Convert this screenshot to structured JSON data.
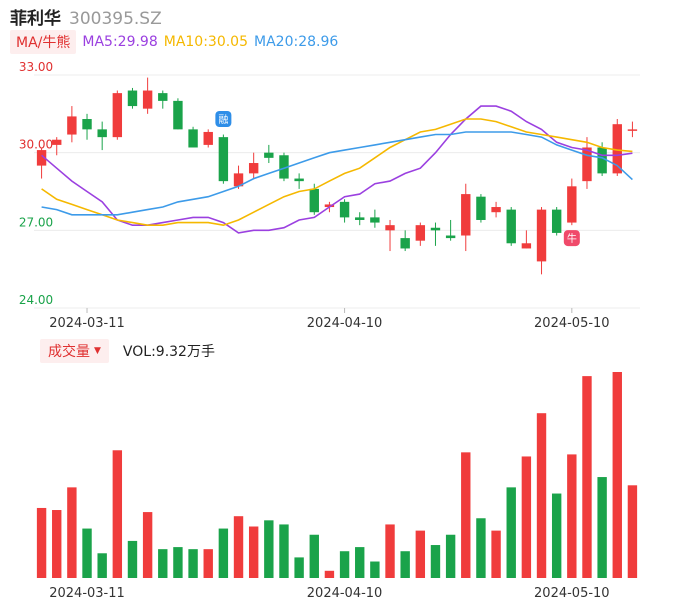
{
  "header": {
    "name": "菲利华",
    "code": "300395.SZ"
  },
  "ma_bar": {
    "button": "MA/牛熊",
    "ma5": "MA5:29.98",
    "ma10": "MA10:30.05",
    "ma20": "MA20:28.96",
    "colors": {
      "ma5": "#9b40e0",
      "ma10": "#f5b800",
      "ma20": "#3d9be9"
    }
  },
  "volume_bar": {
    "button": "成交量",
    "caret": "▼",
    "value": "VOL:9.32万手"
  },
  "markers": [
    {
      "label": "融",
      "index": 12,
      "price": 31.3,
      "color": "#2e8ee8"
    },
    {
      "label": "牛",
      "index": 35,
      "price": 26.7,
      "color": "#f04a6a"
    }
  ],
  "chart_data": [
    {
      "type": "candlestick",
      "ylim": [
        24.0,
        33.0
      ],
      "yticks": [
        "33.00",
        "30.00",
        "27.00",
        "24.00"
      ],
      "xticks": [
        {
          "index": 3,
          "label": "2024-03-11"
        },
        {
          "index": 20,
          "label": "2024-04-10"
        },
        {
          "index": 35,
          "label": "2024-05-10"
        }
      ],
      "colors": {
        "up": "#f03c3c",
        "down": "#1aa34a"
      },
      "candles": [
        {
          "o": 29.5,
          "c": 30.1,
          "h": 30.2,
          "l": 29.0
        },
        {
          "o": 30.3,
          "c": 30.5,
          "h": 30.6,
          "l": 29.9
        },
        {
          "o": 30.7,
          "c": 31.4,
          "h": 31.8,
          "l": 30.4
        },
        {
          "o": 31.3,
          "c": 30.9,
          "h": 31.5,
          "l": 30.5
        },
        {
          "o": 30.9,
          "c": 30.6,
          "h": 31.2,
          "l": 30.1
        },
        {
          "o": 30.6,
          "c": 32.3,
          "h": 32.4,
          "l": 30.5
        },
        {
          "o": 32.4,
          "c": 31.8,
          "h": 32.5,
          "l": 31.7
        },
        {
          "o": 31.7,
          "c": 32.4,
          "h": 32.9,
          "l": 31.5
        },
        {
          "o": 32.3,
          "c": 32.0,
          "h": 32.4,
          "l": 31.7
        },
        {
          "o": 32.0,
          "c": 30.9,
          "h": 32.1,
          "l": 30.9
        },
        {
          "o": 30.9,
          "c": 30.2,
          "h": 31.0,
          "l": 30.2
        },
        {
          "o": 30.3,
          "c": 30.8,
          "h": 30.9,
          "l": 30.2
        },
        {
          "o": 30.6,
          "c": 28.9,
          "h": 30.7,
          "l": 28.8
        },
        {
          "o": 28.7,
          "c": 29.2,
          "h": 29.5,
          "l": 28.6
        },
        {
          "o": 29.2,
          "c": 29.6,
          "h": 30.0,
          "l": 29.0
        },
        {
          "o": 30.0,
          "c": 29.8,
          "h": 30.3,
          "l": 29.6
        },
        {
          "o": 29.9,
          "c": 29.0,
          "h": 30.0,
          "l": 28.9
        },
        {
          "o": 29.0,
          "c": 28.9,
          "h": 29.2,
          "l": 28.6
        },
        {
          "o": 28.6,
          "c": 27.7,
          "h": 28.8,
          "l": 27.6
        },
        {
          "o": 27.9,
          "c": 28.0,
          "h": 28.1,
          "l": 27.7
        },
        {
          "o": 28.1,
          "c": 27.5,
          "h": 28.2,
          "l": 27.3
        },
        {
          "o": 27.5,
          "c": 27.4,
          "h": 27.7,
          "l": 27.2
        },
        {
          "o": 27.5,
          "c": 27.3,
          "h": 27.8,
          "l": 27.1
        },
        {
          "o": 27.0,
          "c": 27.2,
          "h": 27.4,
          "l": 26.2
        },
        {
          "o": 26.7,
          "c": 26.3,
          "h": 27.0,
          "l": 26.2
        },
        {
          "o": 26.6,
          "c": 27.2,
          "h": 27.3,
          "l": 26.4
        },
        {
          "o": 27.1,
          "c": 27.0,
          "h": 27.3,
          "l": 26.4
        },
        {
          "o": 26.8,
          "c": 26.7,
          "h": 27.4,
          "l": 26.6
        },
        {
          "o": 26.8,
          "c": 28.4,
          "h": 28.8,
          "l": 26.2
        },
        {
          "o": 28.3,
          "c": 27.4,
          "h": 28.4,
          "l": 27.3
        },
        {
          "o": 27.7,
          "c": 27.9,
          "h": 28.1,
          "l": 27.5
        },
        {
          "o": 27.8,
          "c": 26.5,
          "h": 27.9,
          "l": 26.4
        },
        {
          "o": 26.3,
          "c": 26.5,
          "h": 27.0,
          "l": 26.3
        },
        {
          "o": 25.8,
          "c": 27.8,
          "h": 27.9,
          "l": 25.3
        },
        {
          "o": 27.8,
          "c": 26.9,
          "h": 27.9,
          "l": 26.8
        },
        {
          "o": 27.3,
          "c": 28.7,
          "h": 29.0,
          "l": 27.2
        },
        {
          "o": 28.9,
          "c": 30.2,
          "h": 30.6,
          "l": 28.6
        },
        {
          "o": 30.2,
          "c": 29.2,
          "h": 30.4,
          "l": 29.1
        },
        {
          "o": 29.2,
          "c": 31.1,
          "h": 31.3,
          "l": 29.1
        },
        {
          "o": 30.9,
          "c": 30.9,
          "h": 31.2,
          "l": 30.6
        }
      ],
      "ma_lines": [
        {
          "key": "ma5",
          "values": [
            29.9,
            29.4,
            28.9,
            28.5,
            28.1,
            27.4,
            27.2,
            27.2,
            27.3,
            27.4,
            27.5,
            27.5,
            27.3,
            26.9,
            27.0,
            27.0,
            27.1,
            27.4,
            27.5,
            27.9,
            28.3,
            28.4,
            28.8,
            28.9,
            29.2,
            29.4,
            30.0,
            30.7,
            31.3,
            31.8,
            31.8,
            31.6,
            31.2,
            30.9,
            30.4,
            30.2,
            30.1,
            29.9,
            29.9,
            29.98
          ]
        },
        {
          "key": "ma10",
          "values": [
            28.6,
            28.2,
            28.0,
            27.8,
            27.6,
            27.4,
            27.3,
            27.2,
            27.2,
            27.3,
            27.3,
            27.3,
            27.2,
            27.4,
            27.7,
            28.0,
            28.3,
            28.5,
            28.6,
            28.9,
            29.2,
            29.4,
            29.8,
            30.2,
            30.5,
            30.8,
            30.9,
            31.1,
            31.3,
            31.3,
            31.2,
            31.0,
            30.8,
            30.7,
            30.6,
            30.5,
            30.4,
            30.2,
            30.1,
            30.05
          ]
        },
        {
          "key": "ma20",
          "values": [
            27.9,
            27.8,
            27.6,
            27.6,
            27.6,
            27.6,
            27.7,
            27.8,
            27.9,
            28.1,
            28.2,
            28.3,
            28.5,
            28.7,
            29.0,
            29.2,
            29.4,
            29.6,
            29.8,
            30.0,
            30.1,
            30.2,
            30.3,
            30.4,
            30.5,
            30.6,
            30.7,
            30.7,
            30.8,
            30.8,
            30.8,
            30.8,
            30.7,
            30.6,
            30.3,
            30.1,
            29.9,
            29.8,
            29.5,
            28.96
          ]
        }
      ]
    },
    {
      "type": "bar",
      "ylim": [
        0,
        10
      ],
      "values": [
        3.4,
        3.3,
        4.4,
        2.4,
        1.2,
        6.2,
        1.8,
        3.2,
        1.4,
        1.5,
        1.4,
        1.4,
        2.4,
        3.0,
        2.5,
        2.8,
        2.6,
        1.0,
        2.1,
        0.35,
        1.3,
        1.5,
        0.8,
        2.6,
        1.3,
        2.3,
        1.6,
        2.1,
        6.1,
        2.9,
        2.3,
        4.4,
        5.9,
        8.0,
        4.1,
        6.0,
        9.8,
        4.9,
        10.0,
        4.5
      ]
    }
  ]
}
